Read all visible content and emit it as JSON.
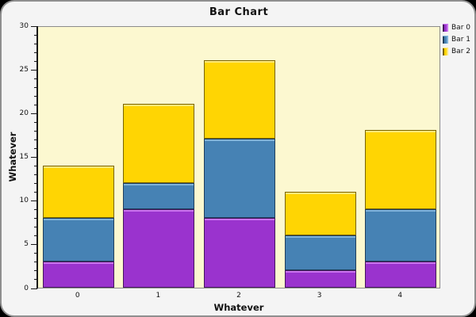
{
  "window": {
    "outer_background": "#000000",
    "panel_background": "#F4F4F4",
    "panel_border": "#8F8F8F"
  },
  "chart_data": {
    "type": "bar",
    "stacked": true,
    "title": "Bar Chart",
    "xlabel": "Whatever",
    "ylabel": "Whatever",
    "categories": [
      "0",
      "1",
      "2",
      "3",
      "4"
    ],
    "series": [
      {
        "name": "Bar 0",
        "values": [
          3,
          9,
          8,
          2,
          3
        ],
        "color": "#9A33CE",
        "highlight": "#C973EE",
        "border": "#45175E"
      },
      {
        "name": "Bar 1",
        "values": [
          5,
          3,
          9,
          4,
          6
        ],
        "color": "#4682B4",
        "highlight": "#7FB2DA",
        "border": "#1F3F5C"
      },
      {
        "name": "Bar 2",
        "values": [
          6,
          9,
          9,
          5,
          9
        ],
        "color": "#FFD503",
        "highlight": "#FFE97A",
        "border": "#7A6400"
      }
    ],
    "stack_totals": [
      14,
      21,
      26,
      11,
      18
    ],
    "ylim": [
      0,
      30
    ],
    "y_major_step": 5,
    "y_minor_step": 1,
    "y_ticks": [
      "0",
      "5",
      "10",
      "15",
      "20",
      "25",
      "30"
    ],
    "plot_background": "#FCF8D0",
    "grid": false,
    "legend_position": "top-right",
    "axis_color": "#161616",
    "text_color": "#111111"
  }
}
